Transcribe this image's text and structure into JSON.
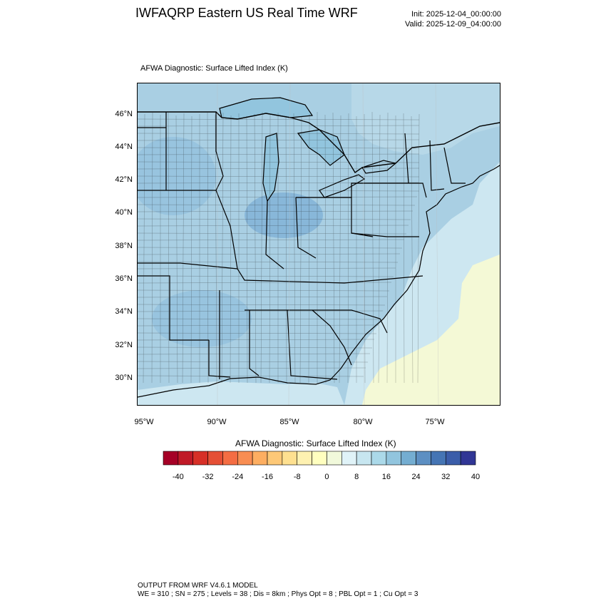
{
  "header": {
    "title": "IWFAQRP Eastern US Real Time WRF",
    "init": "Init: 2025-12-04_00:00:00",
    "valid": "Valid: 2025-12-09_04:00:00"
  },
  "map": {
    "subtitle": "AFWA Diagnostic: Surface Lifted Index   (K)",
    "region": "Eastern United States",
    "lat_labels": [
      "46°N",
      "44°N",
      "42°N",
      "40°N",
      "38°N",
      "36°N",
      "34°N",
      "32°N",
      "30°N"
    ],
    "lon_labels": [
      "95°W",
      "90°W",
      "85°W",
      "80°W",
      "75°W"
    ],
    "colors": {
      "land_field": "#a9cfe3",
      "water_field": "#cde7f1",
      "warm_ocean": "#f4f9d6",
      "strong_blue": "#7fb0d6",
      "boundary": "#000000"
    }
  },
  "colorbar": {
    "title": "AFWA Diagnostic: Surface Lifted Index  (K)",
    "colors": [
      "#a50026",
      "#c01a27",
      "#d73027",
      "#e54f35",
      "#f46d43",
      "#f88d52",
      "#fdae61",
      "#fdc877",
      "#fee090",
      "#fef1b1",
      "#ffffbf",
      "#f1f9db",
      "#e0f3f8",
      "#c7e6f0",
      "#abd9e9",
      "#92c5de",
      "#74add1",
      "#5d8fc2",
      "#4575b4",
      "#3b5da9",
      "#313695"
    ],
    "labels": [
      "-40",
      "-32",
      "-24",
      "-16",
      "-8",
      "0",
      "8",
      "16",
      "24",
      "32",
      "40"
    ]
  },
  "footer": {
    "line1": "OUTPUT FROM WRF V4.6.1 MODEL",
    "line2": "WE = 310 ; SN = 275 ; Levels = 38 ; Dis = 8km ; Phys Opt = 8 ; PBL Opt = 1 ; Cu Opt = 3"
  }
}
